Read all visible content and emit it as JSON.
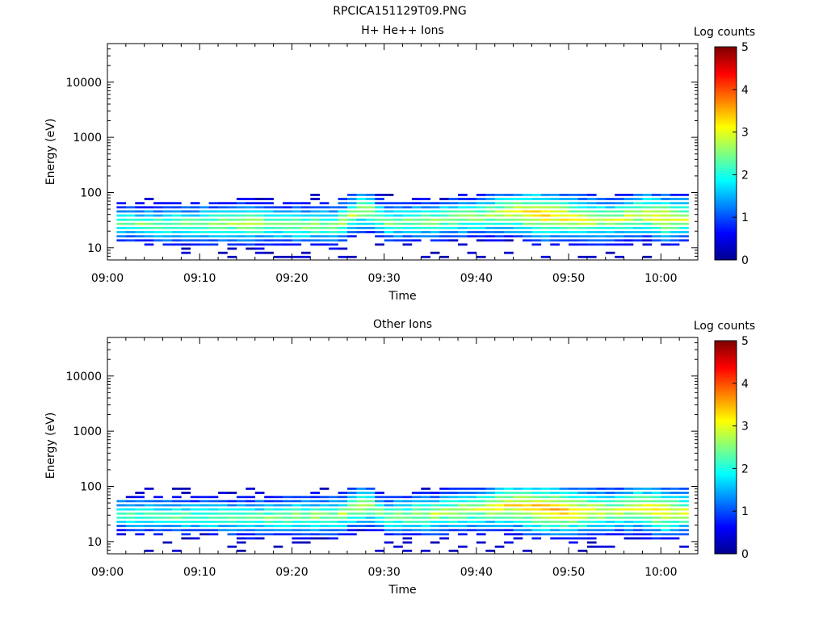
{
  "figure_title": "RPCICA151129T09.PNG",
  "colors": {
    "colormap": [
      "#00008f",
      "#0000ff",
      "#0080ff",
      "#00ffff",
      "#80ff80",
      "#ffff00",
      "#ff8000",
      "#ff0000",
      "#800000"
    ]
  },
  "chart_data": [
    {
      "type": "heatmap",
      "title": "H+ He++ Ions",
      "xlabel": "Time",
      "ylabel": "Energy (eV)",
      "xticks": [
        "09:00",
        "09:10",
        "09:20",
        "09:30",
        "09:40",
        "09:50",
        "10:00"
      ],
      "xlim_minutes": [
        0,
        64
      ],
      "yscale": "log",
      "ylim": [
        6,
        50000
      ],
      "yticks": [
        10,
        100,
        1000,
        10000
      ],
      "ytick_labels": [
        "10",
        "100",
        "1000",
        "10000"
      ],
      "colorbar": {
        "label": "Log counts",
        "range": [
          0,
          5
        ],
        "ticks": [
          "0",
          "1",
          "2",
          "3",
          "4",
          "5"
        ]
      },
      "data_extent": {
        "minutes": [
          1,
          63
        ],
        "energy_eV": [
          6,
          95
        ]
      },
      "peak_band_energy_eV": [
        [
          1,
          28
        ],
        [
          5,
          25
        ],
        [
          10,
          26
        ],
        [
          15,
          27
        ],
        [
          20,
          25
        ],
        [
          25,
          24
        ],
        [
          28,
          50
        ],
        [
          30,
          27
        ],
        [
          35,
          30
        ],
        [
          40,
          35
        ],
        [
          44,
          42
        ],
        [
          47,
          38
        ],
        [
          50,
          33
        ],
        [
          55,
          30
        ],
        [
          58,
          40
        ],
        [
          60,
          33
        ],
        [
          63,
          33
        ]
      ],
      "peak_log_counts": [
        [
          1,
          2.4
        ],
        [
          5,
          2.5
        ],
        [
          10,
          2.6
        ],
        [
          15,
          2.8
        ],
        [
          20,
          2.6
        ],
        [
          25,
          2.7
        ],
        [
          28,
          2.8
        ],
        [
          30,
          2.5
        ],
        [
          35,
          2.7
        ],
        [
          40,
          2.7
        ],
        [
          44,
          3.1
        ],
        [
          47,
          3.5
        ],
        [
          50,
          3.2
        ],
        [
          55,
          2.9
        ],
        [
          58,
          3.1
        ],
        [
          60,
          3.3
        ],
        [
          63,
          2.9
        ]
      ]
    },
    {
      "type": "heatmap",
      "title": "Other Ions",
      "xlabel": "Time",
      "ylabel": "Energy (eV)",
      "xticks": [
        "09:00",
        "09:10",
        "09:20",
        "09:30",
        "09:40",
        "09:50",
        "10:00"
      ],
      "xlim_minutes": [
        0,
        64
      ],
      "yscale": "log",
      "ylim": [
        6,
        50000
      ],
      "yticks": [
        10,
        100,
        1000,
        10000
      ],
      "ytick_labels": [
        "10",
        "100",
        "1000",
        "10000"
      ],
      "colorbar": {
        "label": "Log counts",
        "range": [
          0,
          5
        ],
        "ticks": [
          "0",
          "1",
          "2",
          "3",
          "4",
          "5"
        ]
      },
      "data_extent": {
        "minutes": [
          1,
          63
        ],
        "energy_eV": [
          6,
          95
        ]
      },
      "peak_band_energy_eV": [
        [
          1,
          30
        ],
        [
          5,
          28
        ],
        [
          10,
          28
        ],
        [
          15,
          26
        ],
        [
          20,
          28
        ],
        [
          25,
          28
        ],
        [
          28,
          45
        ],
        [
          30,
          28
        ],
        [
          35,
          30
        ],
        [
          40,
          38
        ],
        [
          44,
          43
        ],
        [
          47,
          38
        ],
        [
          50,
          33
        ],
        [
          55,
          35
        ],
        [
          58,
          40
        ],
        [
          60,
          33
        ],
        [
          63,
          33
        ]
      ],
      "peak_log_counts": [
        [
          1,
          2.3
        ],
        [
          5,
          2.4
        ],
        [
          10,
          2.4
        ],
        [
          15,
          2.5
        ],
        [
          20,
          2.6
        ],
        [
          25,
          2.7
        ],
        [
          28,
          2.9
        ],
        [
          30,
          2.5
        ],
        [
          35,
          2.8
        ],
        [
          40,
          2.9
        ],
        [
          44,
          3.3
        ],
        [
          47,
          3.6
        ],
        [
          50,
          3.4
        ],
        [
          55,
          2.9
        ],
        [
          58,
          3.2
        ],
        [
          60,
          3.4
        ],
        [
          63,
          2.9
        ]
      ]
    }
  ]
}
